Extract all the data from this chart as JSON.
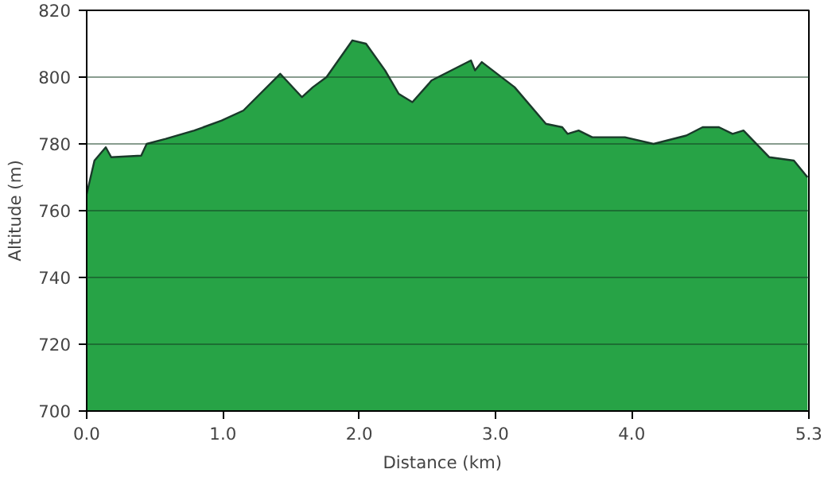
{
  "chart_data": {
    "type": "area",
    "xlabel": "Distance   (km)",
    "ylabel": "Altitude (m)",
    "series": [
      {
        "color": "#27a346",
        "x": [
          0.0,
          0.057,
          0.14,
          0.18,
          0.4,
          0.44,
          0.58,
          0.79,
          0.99,
          1.15,
          1.42,
          1.58,
          1.66,
          1.76,
          1.95,
          2.05,
          2.19,
          2.29,
          2.39,
          2.51,
          2.53,
          2.82,
          2.85,
          2.9,
          3.14,
          3.37,
          3.49,
          3.53,
          3.61,
          3.71,
          3.95,
          4.16,
          4.4,
          4.52,
          4.64,
          4.74,
          4.82,
          5.01,
          5.19,
          5.29
        ],
        "values": [
          765,
          775,
          779,
          776,
          776.5,
          780,
          781.5,
          784,
          787,
          790,
          801,
          794,
          797,
          800,
          811,
          810,
          802,
          795,
          792.5,
          798,
          799,
          805,
          802,
          804.5,
          797,
          786,
          785,
          783,
          784,
          782,
          782,
          780,
          782.5,
          785,
          785,
          783,
          784,
          776,
          775,
          770
        ]
      }
    ],
    "xlim": [
      0,
      5.3
    ],
    "ylim": [
      700,
      820
    ],
    "xticks": [
      {
        "value": 0,
        "label": "0.0"
      },
      {
        "value": 1,
        "label": "1.0"
      },
      {
        "value": 2,
        "label": "2.0"
      },
      {
        "value": 3,
        "label": "3.0"
      },
      {
        "value": 4,
        "label": "4.0"
      },
      {
        "value": 5.3,
        "label": "5.3"
      }
    ],
    "yticks": [
      700,
      720,
      740,
      760,
      780,
      800,
      820
    ],
    "grid": "y"
  }
}
